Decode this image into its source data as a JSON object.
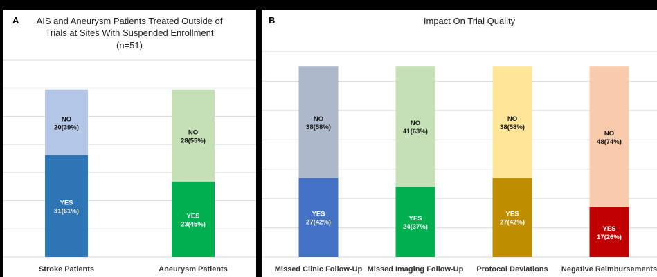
{
  "chart_data": [
    {
      "panel": "A",
      "type": "bar",
      "stacked": true,
      "title": [
        "AIS and Aneurysm Patients Treated Outside of",
        "Trials at Sites With Suspended Enrollment",
        "(n=51)"
      ],
      "categories": [
        "Stroke Patients",
        "Aneurysm Patients"
      ],
      "series": [
        {
          "name": "YES",
          "values": [
            31,
            23
          ],
          "percent": [
            "61%",
            "45%"
          ],
          "colors": [
            "#2e75b6",
            "#00b050"
          ]
        },
        {
          "name": "NO",
          "values": [
            20,
            28
          ],
          "percent": [
            "39%",
            "55%"
          ],
          "colors": [
            "#b4c7e7",
            "#c5e0b4"
          ]
        }
      ],
      "ylim": [
        0,
        60
      ],
      "grid": true
    },
    {
      "panel": "B",
      "type": "bar",
      "stacked": true,
      "title": [
        "Impact On Trial Quality"
      ],
      "categories": [
        "Missed Clinic Follow-Up",
        "Missed Imaging Follow-Up",
        "Protocol Deviations",
        "Negative Reimbursements"
      ],
      "series": [
        {
          "name": "YES",
          "values": [
            27,
            24,
            27,
            17
          ],
          "percent": [
            "42%",
            "37%",
            "42%",
            "26%"
          ],
          "colors": [
            "#4472c4",
            "#00b050",
            "#bf8f00",
            "#c00000"
          ]
        },
        {
          "name": "NO",
          "values": [
            38,
            41,
            38,
            48
          ],
          "percent": [
            "58%",
            "63%",
            "58%",
            "74%"
          ],
          "colors": [
            "#adb9ca",
            "#c5e0b4",
            "#ffe699",
            "#f8cbad"
          ]
        }
      ],
      "ylim": [
        0,
        70
      ],
      "grid": true
    }
  ]
}
